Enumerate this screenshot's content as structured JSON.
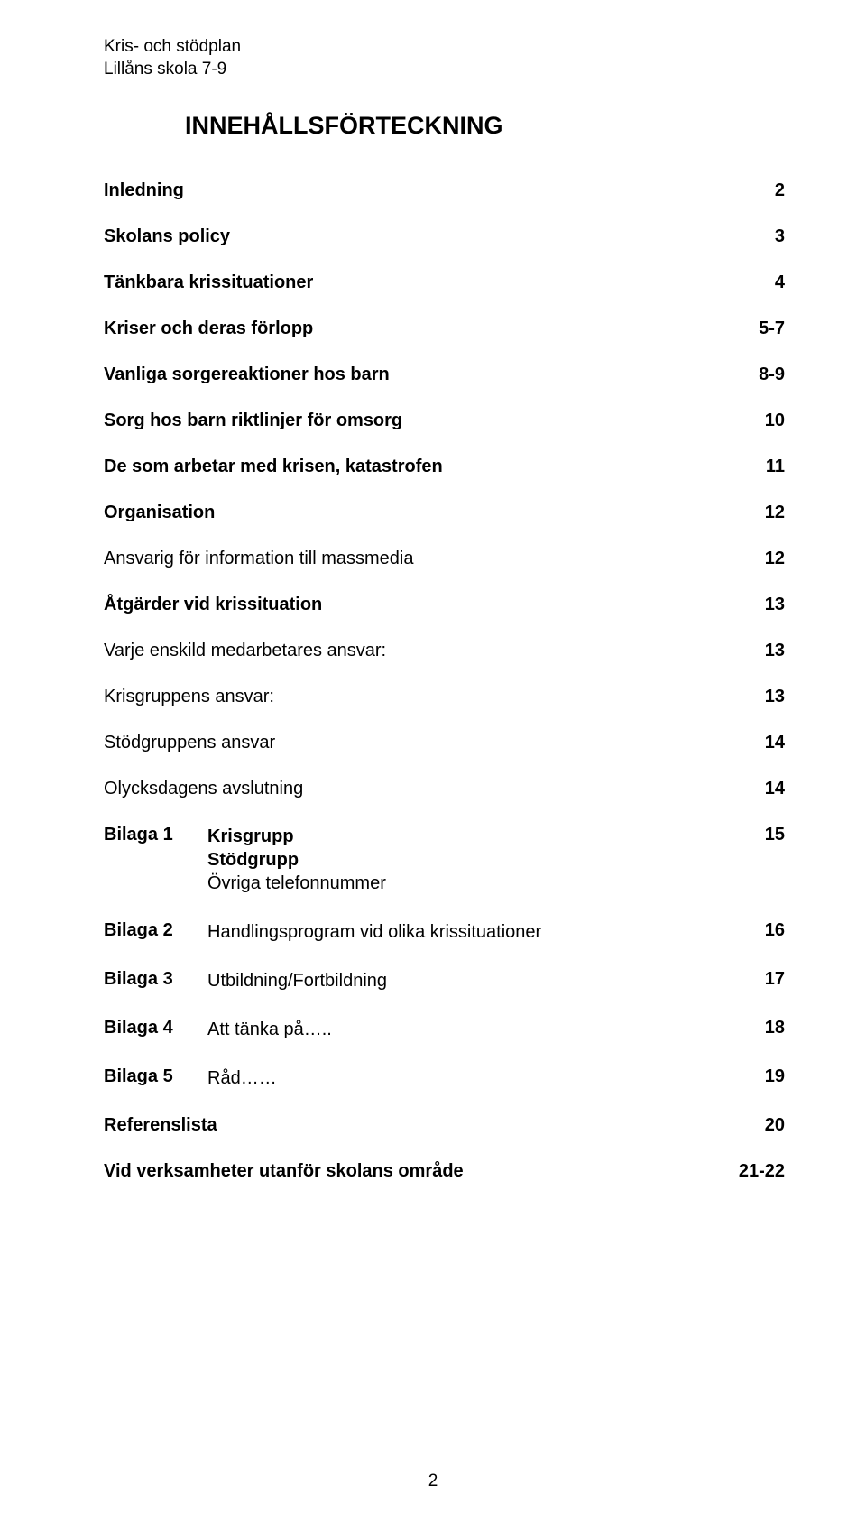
{
  "header": {
    "line1": "Kris- och stödplan",
    "line2": "Lillåns skola 7-9"
  },
  "title": "INNEHÅLLSFÖRTECKNING",
  "toc": [
    {
      "label": "Inledning",
      "page": "2",
      "bold": true
    },
    {
      "label": "Skolans policy",
      "page": "3",
      "bold": true
    },
    {
      "label": "Tänkbara krissituationer",
      "page": "4",
      "bold": true
    },
    {
      "label": "Kriser och deras förlopp",
      "page": "5-7",
      "bold": true
    },
    {
      "label": "Vanliga sorgereaktioner hos barn",
      "page": "8-9",
      "bold": true
    },
    {
      "label": "Sorg hos barn riktlinjer för omsorg",
      "page": "10",
      "bold": true
    },
    {
      "label": "De som arbetar med krisen, katastrofen",
      "page": "11",
      "bold": true
    },
    {
      "label": "Organisation",
      "page": "12",
      "bold": true
    },
    {
      "label": "Ansvarig för information till massmedia",
      "page": "12",
      "bold": false
    },
    {
      "label": "Åtgärder vid krissituation",
      "page": "13",
      "bold": true
    },
    {
      "label": "Varje enskild medarbetares ansvar:",
      "page": "13",
      "bold": false
    },
    {
      "label": "Krisgruppens ansvar:",
      "page": "13",
      "bold": false
    },
    {
      "label": "Stödgruppens ansvar",
      "page": "14",
      "bold": false
    },
    {
      "label": "Olycksdagens avslutning",
      "page": "14",
      "bold": false
    }
  ],
  "bilagor": [
    {
      "num": "Bilaga 1",
      "lines": [
        {
          "text": "Krisgrupp",
          "bold": true
        },
        {
          "text": "Stödgrupp",
          "bold": true
        },
        {
          "text": "Övriga telefonnummer",
          "bold": false
        }
      ],
      "page": "15"
    },
    {
      "num": "Bilaga 2",
      "lines": [
        {
          "text": "Handlingsprogram vid olika krissituationer",
          "bold": false
        }
      ],
      "page": "16"
    },
    {
      "num": "Bilaga 3",
      "lines": [
        {
          "text": "Utbildning/Fortbildning",
          "bold": false
        }
      ],
      "page": "17"
    },
    {
      "num": "Bilaga 4",
      "lines": [
        {
          "text": "Att tänka på…..",
          "bold": false
        }
      ],
      "page": "18"
    },
    {
      "num": "Bilaga 5",
      "lines": [
        {
          "text": "Råd……",
          "bold": false
        }
      ],
      "page": "19"
    }
  ],
  "footer_toc": [
    {
      "label": "Referenslista",
      "page": "20",
      "bold": true
    },
    {
      "label": "Vid verksamheter utanför skolans område",
      "page": "21-22",
      "bold": true
    }
  ],
  "page_number": "2",
  "colors": {
    "background": "#ffffff",
    "text": "#000000"
  },
  "typography": {
    "body_fontsize": 20,
    "title_fontsize": 27,
    "header_fontsize": 19,
    "font_family": "Arial"
  }
}
